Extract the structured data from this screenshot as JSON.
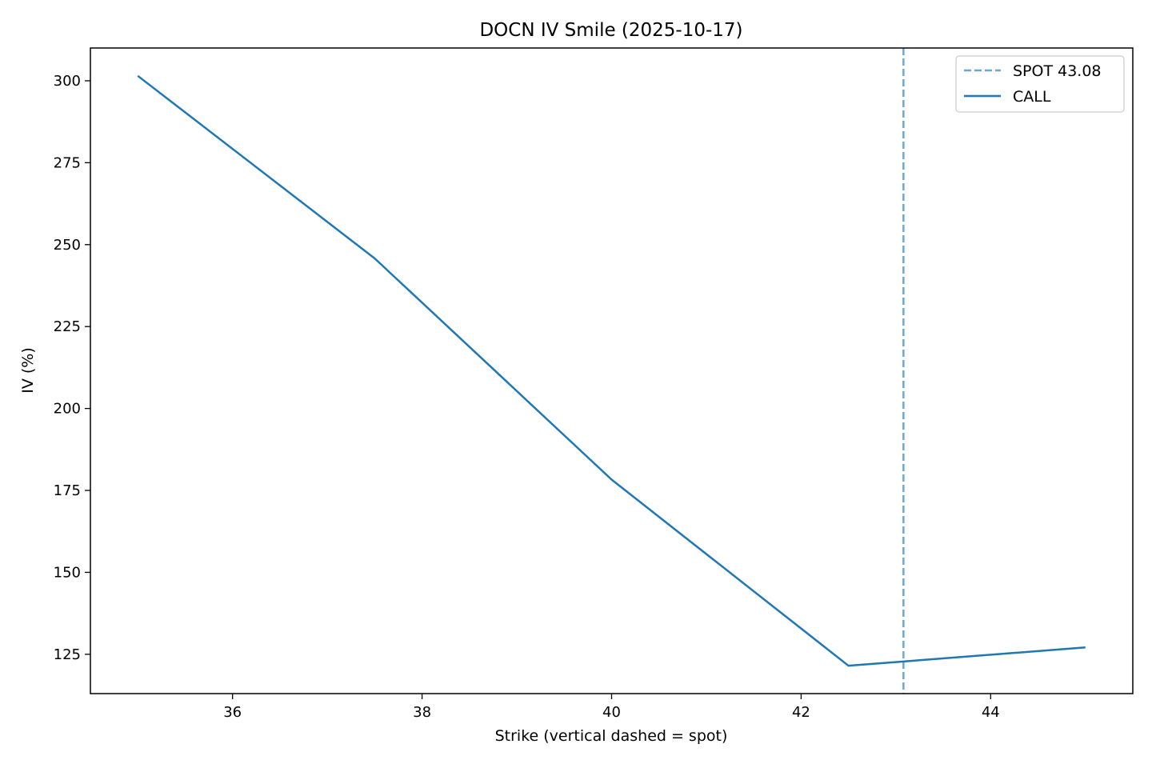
{
  "chart_data": {
    "type": "line",
    "title": "DOCN IV Smile (2025-10-17)",
    "xlabel": "Strike (vertical dashed = spot)",
    "ylabel": "IV (%)",
    "xlim": [
      34.5,
      45.5
    ],
    "ylim": [
      113,
      310
    ],
    "xticks": [
      36,
      38,
      40,
      42,
      44
    ],
    "yticks": [
      125,
      150,
      175,
      200,
      225,
      250,
      275,
      300
    ],
    "grid": false,
    "legend_position": "top-right",
    "series": [
      {
        "name": "CALL",
        "color": "#1f77b4",
        "style": "solid",
        "x": [
          35.0,
          37.5,
          40.0,
          42.5,
          45.0
        ],
        "y": [
          301.5,
          245.8,
          178.3,
          121.5,
          127.1
        ]
      }
    ],
    "spot": {
      "value": 43.08,
      "label": "SPOT 43.08",
      "color": "#1f77b4",
      "style": "dashed"
    }
  }
}
